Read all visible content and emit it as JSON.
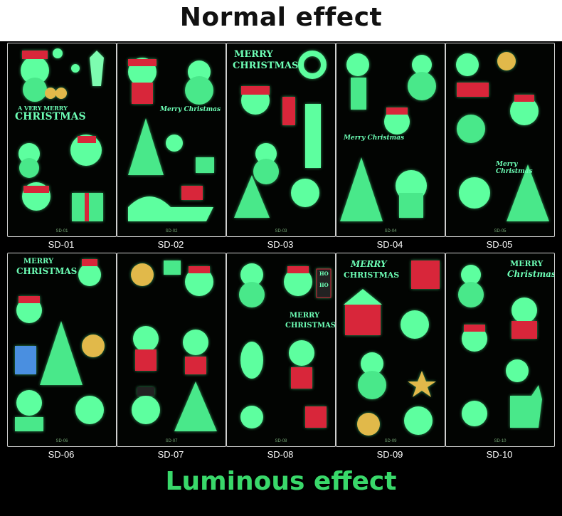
{
  "header": {
    "title": "Normal effect"
  },
  "footer": {
    "title": "Luminous effect"
  },
  "colors": {
    "glow": "#5dff9f",
    "red": "#d8263a",
    "panel_border": "#cfcfcf"
  },
  "panels": [
    {
      "code": "SD-01",
      "art_text": [
        "A VERY MERRY",
        "CHRISTMAS"
      ]
    },
    {
      "code": "SD-02",
      "art_text": [
        "Merry Christmas"
      ]
    },
    {
      "code": "SD-03",
      "art_text": [
        "MERRY",
        "CHRISTMAS"
      ]
    },
    {
      "code": "SD-04",
      "art_text": [
        "Merry Christmas"
      ]
    },
    {
      "code": "SD-05",
      "art_text": [
        "Merry Christmas"
      ]
    },
    {
      "code": "SD-06",
      "art_text": [
        "MERRY",
        "CHRISTMAS"
      ]
    },
    {
      "code": "SD-07",
      "art_text": []
    },
    {
      "code": "SD-08",
      "art_text": [
        "MERRY",
        "CHRISTMAS",
        "HO",
        "HO"
      ]
    },
    {
      "code": "SD-09",
      "art_text": [
        "MERRY",
        "CHRISTMAS"
      ]
    },
    {
      "code": "SD-10",
      "art_text": [
        "MERRY",
        "Christmas"
      ]
    }
  ]
}
